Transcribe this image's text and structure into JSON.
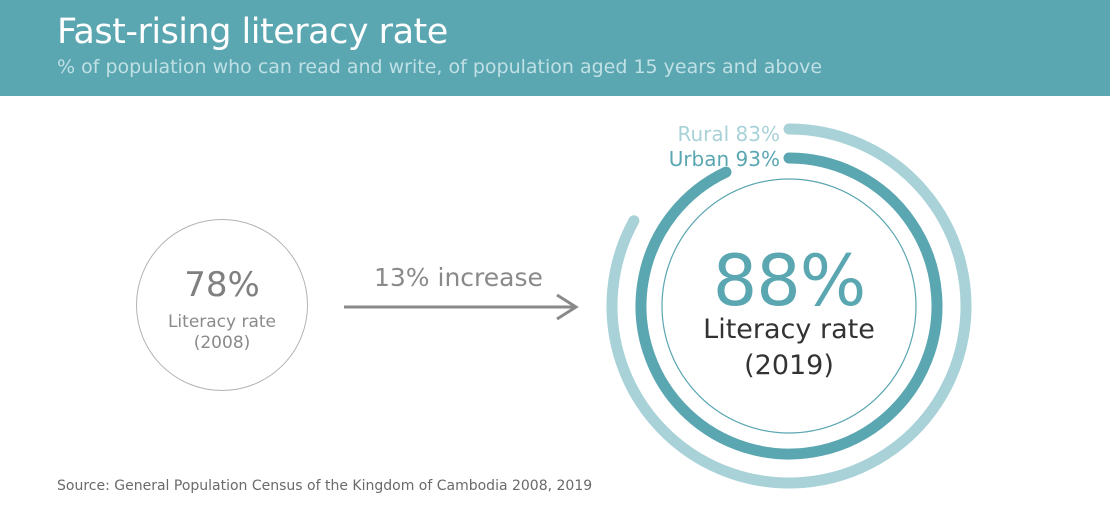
{
  "header": {
    "title": "Fast-rising literacy rate",
    "subtitle": "% of population who can read and write, of population aged 15 years and above"
  },
  "chart_data": {
    "type": "pie",
    "title": "Fast-rising literacy rate",
    "subtitle": "% of population who can read and write, of population aged 15 years and above",
    "rate_2008": {
      "value_text": "78%",
      "label": "Literacy rate",
      "year": "(2008)",
      "value": 78
    },
    "change": {
      "label": "13% increase",
      "value": 13
    },
    "rate_2019": {
      "value_text": "88%",
      "label": "Literacy rate",
      "year": "(2019)",
      "value": 88
    },
    "series": [
      {
        "name": "Rural",
        "label": "Rural 83%",
        "value": 83,
        "color": "#a8d2d8"
      },
      {
        "name": "Urban",
        "label": "Urban 93%",
        "value": 93,
        "color": "#5aa6b1"
      }
    ],
    "source": "Source: General Population Census of the Kingdom of Cambodia 2008, 2019"
  },
  "colors": {
    "accent": "#5aa6b1",
    "rural": "#a8d2d8",
    "grey": "#8a8a8a"
  }
}
